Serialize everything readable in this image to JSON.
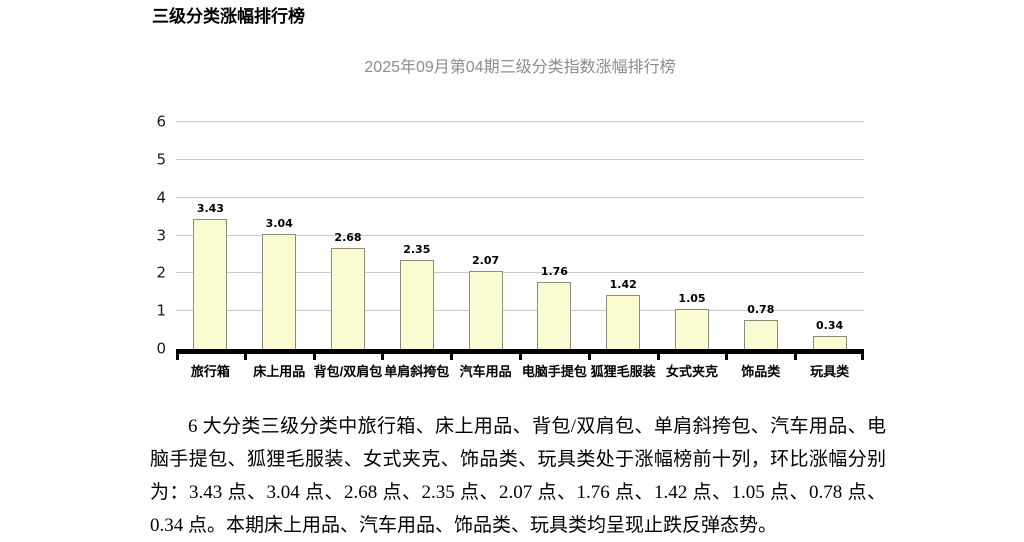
{
  "document": {
    "heading": "三级分类涨幅排行榜",
    "paragraph": "6 大分类三级分类中旅行箱、床上用品、背包/双肩包、单肩斜挎包、汽车用品、电脑手提包、狐狸毛服装、女式夹克、饰品类、玩具类处于涨幅榜前十列，环比涨幅分别为：3.43 点、3.04 点、2.68 点、2.35 点、2.07 点、1.76 点、1.42 点、1.05 点、0.78 点、0.34 点。本期床上用品、汽车用品、饰品类、玩具类均呈现止跌反弹态势。"
  },
  "chart_data": {
    "type": "bar",
    "title": "2025年09月第04期三级分类指数涨幅排行榜",
    "categories": [
      "旅行箱",
      "床上用品",
      "背包/双肩包",
      "单肩斜挎包",
      "汽车用品",
      "电脑手提包",
      "狐狸毛服装",
      "女式夹克",
      "饰品类",
      "玩具类"
    ],
    "values": [
      3.43,
      3.04,
      2.68,
      2.35,
      2.07,
      1.76,
      1.42,
      1.05,
      0.78,
      0.34
    ],
    "value_labels": [
      "3.43",
      "3.04",
      "2.68",
      "2.35",
      "2.07",
      "1.76",
      "1.42",
      "1.05",
      "0.78",
      "0.34"
    ],
    "xlabel": "",
    "ylabel": "",
    "ylim": [
      0,
      6
    ],
    "yticks": [
      0,
      1,
      2,
      3,
      4,
      5,
      6
    ],
    "grid": true,
    "legend_position": "none",
    "colors": {
      "bar_fill": "#fbfbd2",
      "bar_border": "#8c8c7a",
      "gridline": "#c9c9c9",
      "axis": "#000000",
      "title_text": "#8c8c8c",
      "value_text": "#000000"
    }
  }
}
